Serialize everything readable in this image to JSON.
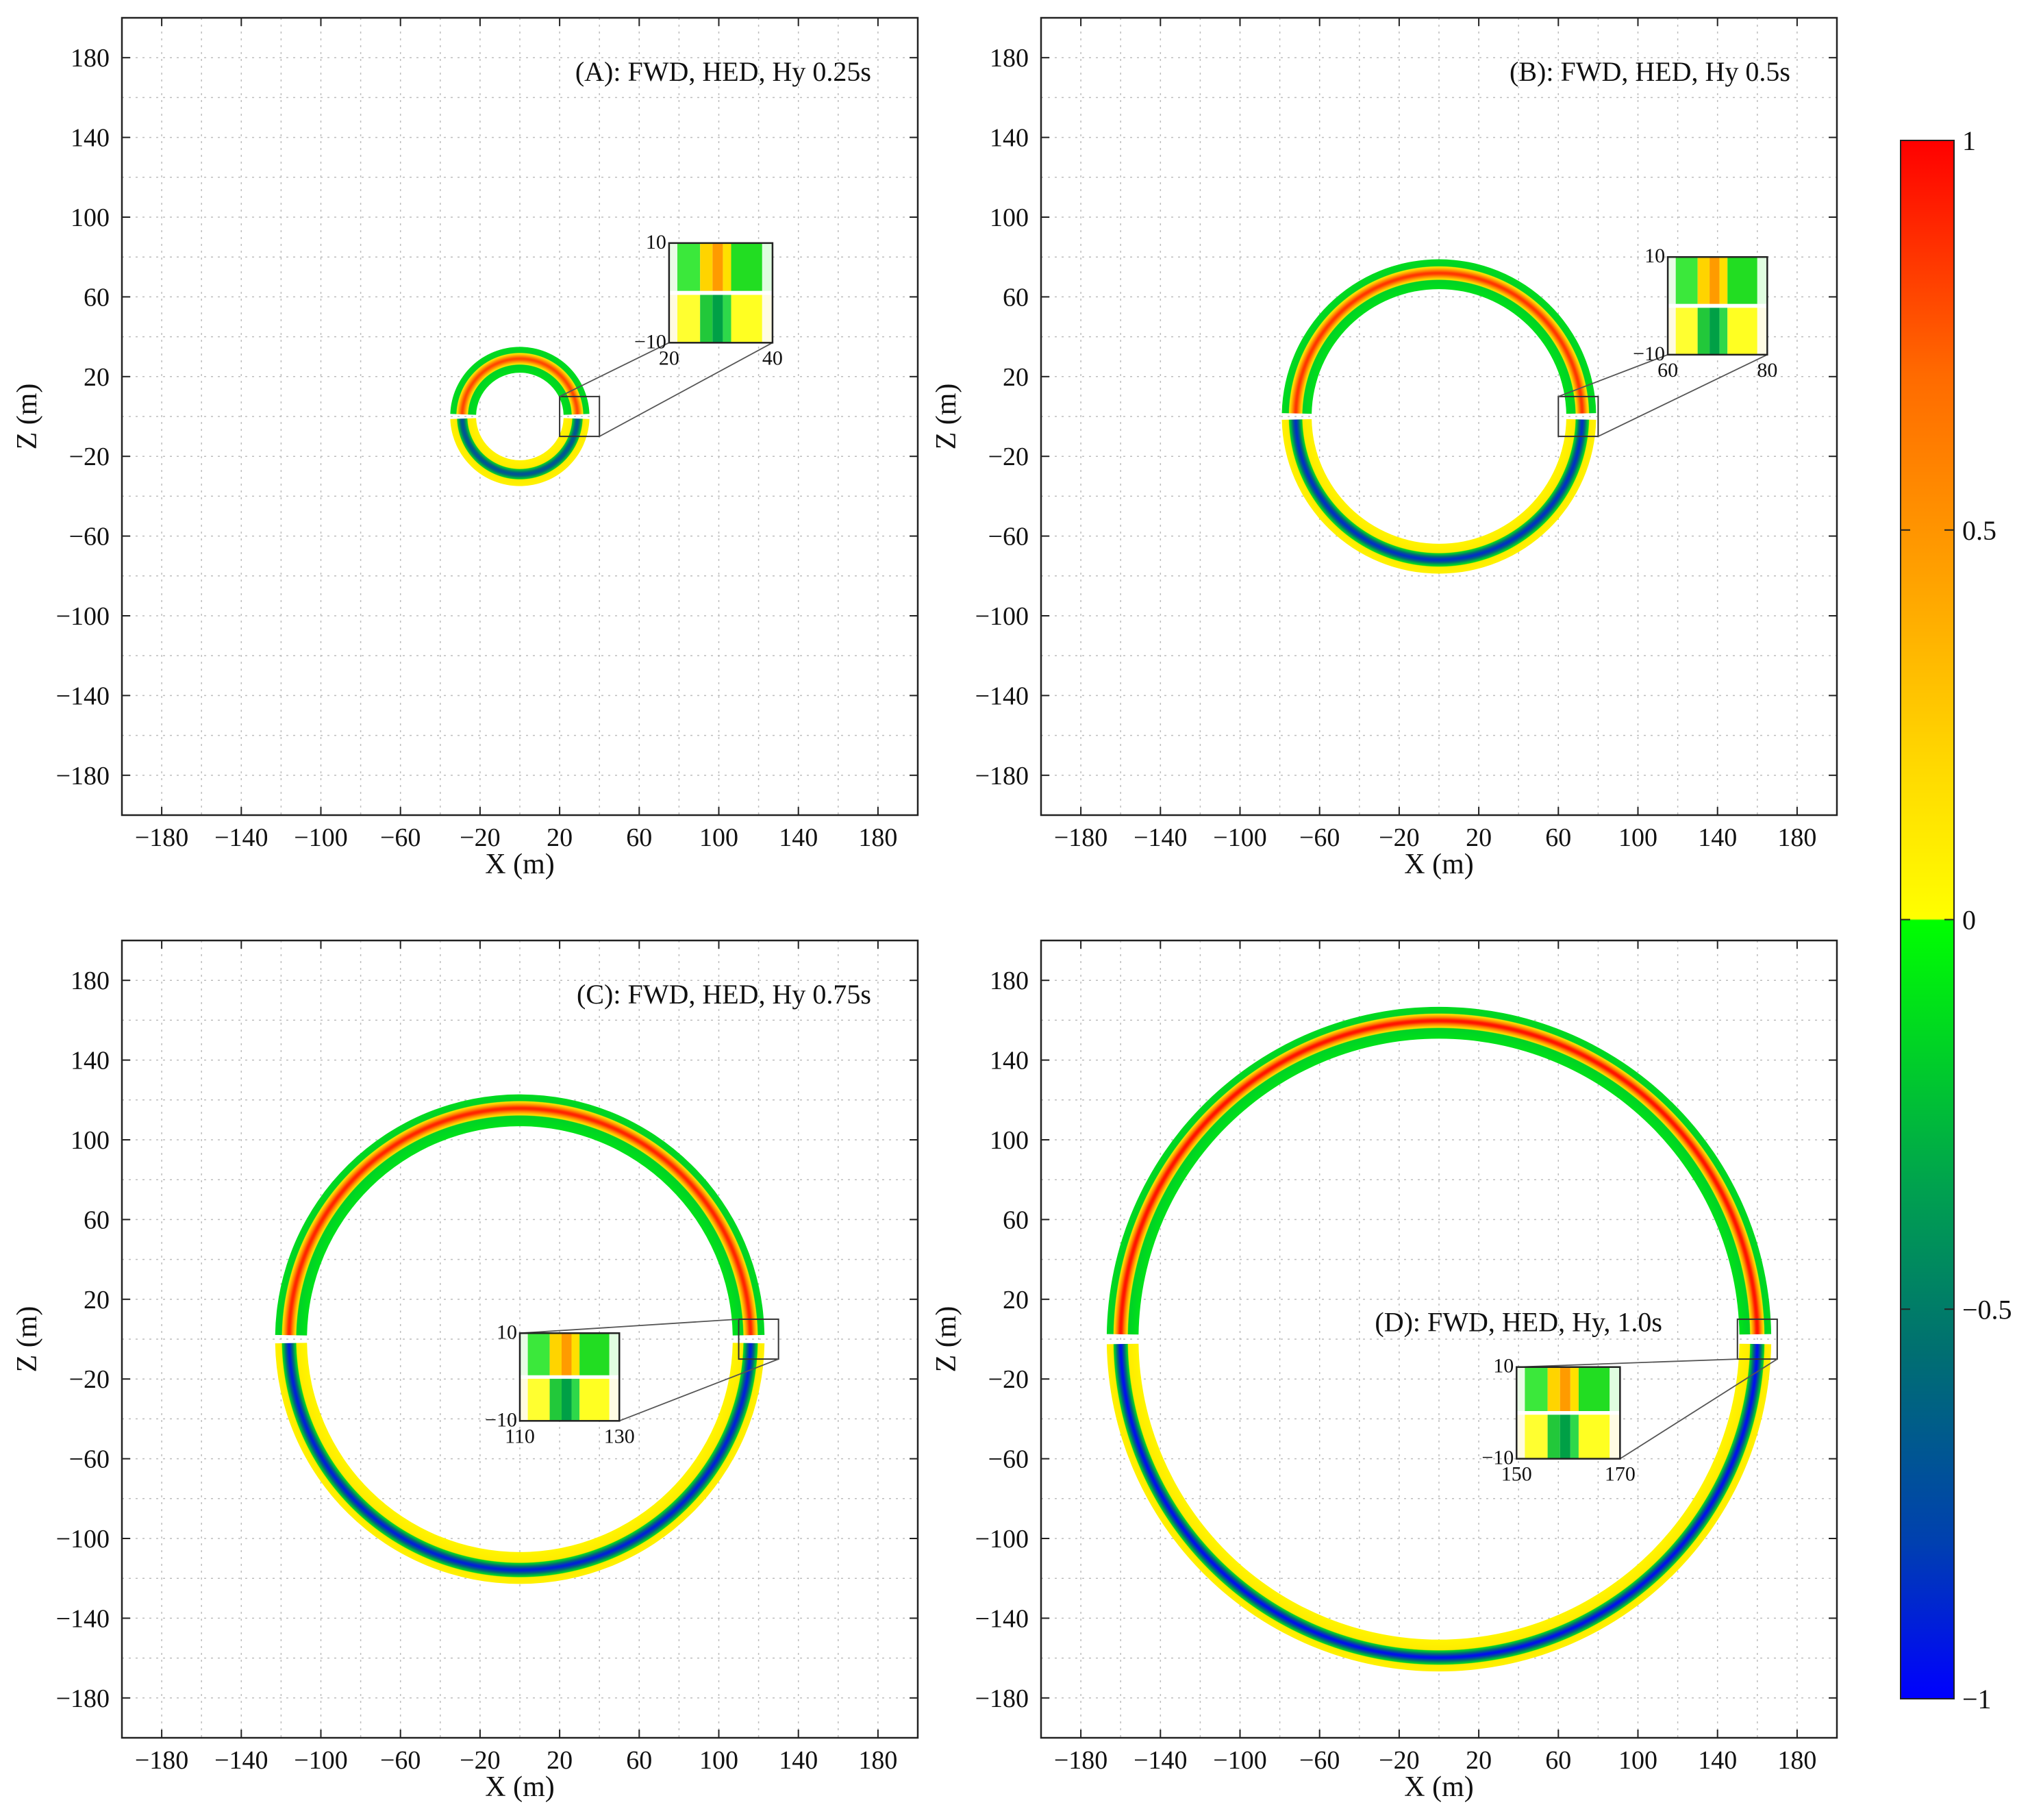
{
  "chart_data": {
    "type": "heatmap",
    "description_units": "m",
    "colorbar": {
      "ticks": [
        1,
        0.5,
        0,
        -0.5,
        -1
      ],
      "tick_labels": [
        "1",
        "0.5",
        "0",
        "−0.5",
        "−1"
      ],
      "range": [
        -1,
        1
      ],
      "stops": [
        {
          "v": 1,
          "color": "#ff0000"
        },
        {
          "v": 0.7,
          "color": "#ff6a00"
        },
        {
          "v": 0.45,
          "color": "#ff9f00"
        },
        {
          "v": 0.2,
          "color": "#ffd800"
        },
        {
          "v": 0.001,
          "color": "#ffff00"
        },
        {
          "v": -0.001,
          "color": "#00ff00"
        },
        {
          "v": -0.35,
          "color": "#00a050"
        },
        {
          "v": -0.55,
          "color": "#007070"
        },
        {
          "v": -0.8,
          "color": "#0040b0"
        },
        {
          "v": -1,
          "color": "#0000ff"
        }
      ]
    },
    "panels": [
      {
        "id": "A",
        "title": "(A): FWD, HED, Hy 0.25s",
        "title_anchor": "top-right",
        "xlabel": "X (m)",
        "ylabel": "Z (m)",
        "xlim": [
          -200,
          200
        ],
        "ylim": [
          -200,
          200
        ],
        "xticks": [
          -180,
          -140,
          -100,
          -60,
          -20,
          20,
          60,
          100,
          140,
          180
        ],
        "yticks": [
          -180,
          -140,
          -100,
          -60,
          -20,
          20,
          60,
          100,
          140,
          180
        ],
        "xtick_labels": [
          "−180",
          "−140",
          "−100",
          "−60",
          "−20",
          "20",
          "60",
          "100",
          "140",
          "180"
        ],
        "ytick_labels": [
          "−180",
          "−140",
          "−100",
          "−60",
          "−20",
          "20",
          "60",
          "100",
          "140",
          "180"
        ],
        "wavefront_radius": 29,
        "ring_inner_radius": 22,
        "ring_outer_radius": 35,
        "upper_half_peak": 0.8,
        "lower_half_peak": -0.7,
        "zoom_box": {
          "x": [
            20,
            40
          ],
          "z": [
            -10,
            10
          ]
        },
        "inset": {
          "x_tick_labels": [
            "20",
            "40"
          ],
          "z_tick_labels": [
            "10",
            "−10"
          ],
          "data_position": {
            "x": [
              75,
              127
            ],
            "z": [
              37,
              87
            ]
          }
        }
      },
      {
        "id": "B",
        "title": "(B): FWD, HED, Hy 0.5s",
        "title_anchor": "top-right",
        "xlabel": "X (m)",
        "ylabel": "Z (m)",
        "xlim": [
          -200,
          200
        ],
        "ylim": [
          -200,
          200
        ],
        "xticks": [
          -180,
          -140,
          -100,
          -60,
          -20,
          20,
          60,
          100,
          140,
          180
        ],
        "yticks": [
          -180,
          -140,
          -100,
          -60,
          -20,
          20,
          60,
          100,
          140,
          180
        ],
        "xtick_labels": [
          "−180",
          "−140",
          "−100",
          "−60",
          "−20",
          "20",
          "60",
          "100",
          "140",
          "180"
        ],
        "ytick_labels": [
          "−180",
          "−140",
          "−100",
          "−60",
          "−20",
          "20",
          "60",
          "100",
          "140",
          "180"
        ],
        "wavefront_radius": 72,
        "ring_inner_radius": 64,
        "ring_outer_radius": 79,
        "upper_half_peak": 0.85,
        "lower_half_peak": -0.85,
        "zoom_box": {
          "x": [
            60,
            80
          ],
          "z": [
            -10,
            10
          ]
        },
        "inset": {
          "x_tick_labels": [
            "60",
            "80"
          ],
          "z_tick_labels": [
            "10",
            "−10"
          ],
          "data_position": {
            "x": [
              115,
              165
            ],
            "z": [
              31,
              80
            ]
          }
        }
      },
      {
        "id": "C",
        "title": "(C): FWD, HED, Hy 0.75s",
        "title_anchor": "top-right",
        "xlabel": "X (m)",
        "ylabel": "Z (m)",
        "xlim": [
          -200,
          200
        ],
        "ylim": [
          -200,
          200
        ],
        "xticks": [
          -180,
          -140,
          -100,
          -60,
          -20,
          20,
          60,
          100,
          140,
          180
        ],
        "yticks": [
          -180,
          -140,
          -100,
          -60,
          -20,
          20,
          60,
          100,
          140,
          180
        ],
        "xtick_labels": [
          "−180",
          "−140",
          "−100",
          "−60",
          "−20",
          "20",
          "60",
          "100",
          "140",
          "180"
        ],
        "ytick_labels": [
          "−180",
          "−140",
          "−100",
          "−60",
          "−20",
          "20",
          "60",
          "100",
          "140",
          "180"
        ],
        "wavefront_radius": 116,
        "ring_inner_radius": 107,
        "ring_outer_radius": 123,
        "upper_half_peak": 0.9,
        "lower_half_peak": -0.9,
        "zoom_box": {
          "x": [
            110,
            130
          ],
          "z": [
            -10,
            10
          ]
        },
        "inset": {
          "x_tick_labels": [
            "110",
            "130"
          ],
          "z_tick_labels": [
            "10",
            "−10"
          ],
          "data_position": {
            "x": [
              0,
              50
            ],
            "z": [
              -41,
              3
            ]
          }
        }
      },
      {
        "id": "D",
        "title": "(D): FWD, HED, Hy, 1.0s",
        "title_anchor": "center",
        "xlabel": "X (m)",
        "ylabel": "Z (m)",
        "xlim": [
          -200,
          200
        ],
        "ylim": [
          -200,
          200
        ],
        "xticks": [
          -180,
          -140,
          -100,
          -60,
          -20,
          20,
          60,
          100,
          140,
          180
        ],
        "yticks": [
          -180,
          -140,
          -100,
          -60,
          -20,
          20,
          60,
          100,
          140,
          180
        ],
        "xtick_labels": [
          "−180",
          "−140",
          "−100",
          "−60",
          "−20",
          "20",
          "60",
          "100",
          "140",
          "180"
        ],
        "ytick_labels": [
          "−180",
          "−140",
          "−100",
          "−60",
          "−20",
          "20",
          "60",
          "100",
          "140",
          "180"
        ],
        "wavefront_radius": 160,
        "ring_inner_radius": 151,
        "ring_outer_radius": 167,
        "upper_half_peak": 0.95,
        "lower_half_peak": -0.95,
        "zoom_box": {
          "x": [
            150,
            170
          ],
          "z": [
            -10,
            10
          ]
        },
        "inset": {
          "x_tick_labels": [
            "150",
            "170"
          ],
          "z_tick_labels": [
            "10",
            "−10"
          ],
          "data_position": {
            "x": [
              39,
              91
            ],
            "z": [
              -60,
              -14
            ]
          }
        }
      }
    ]
  }
}
